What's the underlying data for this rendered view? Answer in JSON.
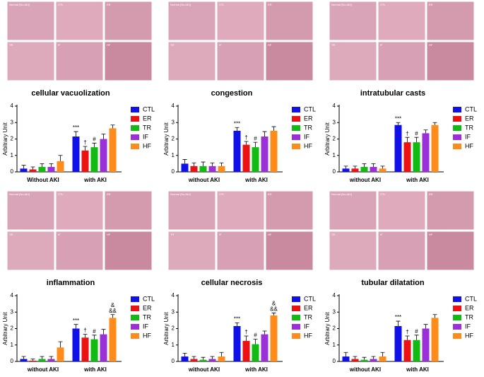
{
  "chart_data": [
    {
      "type": "bar",
      "title": "cellular vacuolization",
      "y_label": "Arbitrary Unit",
      "image_labels": [
        "Normal (No AKI)",
        "CTL",
        "ER",
        "TR",
        "IF",
        "HF"
      ],
      "categories": [
        "Without AKI",
        "with AKI"
      ],
      "ylim": [
        0,
        4
      ],
      "yticks": [
        0,
        1,
        2,
        3,
        4
      ],
      "series": [
        {
          "name": "CTL",
          "color": "#1010e8",
          "values": [
            0.2,
            2.15
          ],
          "errors": [
            0.2,
            0.3
          ],
          "annotations": [
            null,
            [
              "***"
            ]
          ]
        },
        {
          "name": "ER",
          "color": "#ee1111",
          "values": [
            0.15,
            1.3
          ],
          "errors": [
            0.15,
            0.25
          ],
          "annotations": [
            null,
            [
              "†"
            ]
          ]
        },
        {
          "name": "TR",
          "color": "#11bb11",
          "values": [
            0.3,
            1.5
          ],
          "errors": [
            0.2,
            0.25
          ],
          "annotations": [
            null,
            [
              "#"
            ]
          ]
        },
        {
          "name": "IF",
          "color": "#9b30d9",
          "values": [
            0.3,
            2.0
          ],
          "errors": [
            0.2,
            0.3
          ],
          "annotations": [
            null,
            null
          ]
        },
        {
          "name": "HF",
          "color": "#ff8c1a",
          "values": [
            0.65,
            2.65
          ],
          "errors": [
            0.35,
            0.2
          ],
          "annotations": [
            null,
            null
          ]
        }
      ]
    },
    {
      "type": "bar",
      "title": "congestion",
      "y_label": "Arbitrary Unit",
      "image_labels": [
        "Normal (No AKI)",
        "CTL",
        "ER",
        "TR",
        "IF",
        "HF"
      ],
      "categories": [
        "without AKI",
        "with AKI"
      ],
      "ylim": [
        0,
        4
      ],
      "yticks": [
        0,
        1,
        2,
        3,
        4
      ],
      "series": [
        {
          "name": "CTL",
          "color": "#1010e8",
          "values": [
            0.5,
            2.5
          ],
          "errors": [
            0.25,
            0.2
          ],
          "annotations": [
            null,
            [
              "***"
            ]
          ]
        },
        {
          "name": "ER",
          "color": "#ee1111",
          "values": [
            0.35,
            1.65
          ],
          "errors": [
            0.2,
            0.2
          ],
          "annotations": [
            null,
            [
              "†"
            ]
          ]
        },
        {
          "name": "TR",
          "color": "#11bb11",
          "values": [
            0.35,
            1.5
          ],
          "errors": [
            0.25,
            0.3
          ],
          "annotations": [
            null,
            [
              "#"
            ]
          ]
        },
        {
          "name": "IF",
          "color": "#9b30d9",
          "values": [
            0.35,
            2.15
          ],
          "errors": [
            0.2,
            0.3
          ],
          "annotations": [
            null,
            null
          ]
        },
        {
          "name": "HF",
          "color": "#ff8c1a",
          "values": [
            0.35,
            2.5
          ],
          "errors": [
            0.2,
            0.25
          ],
          "annotations": [
            null,
            null
          ]
        }
      ]
    },
    {
      "type": "bar",
      "title": "intratubular casts",
      "y_label": "Arbitrary Unit",
      "image_labels": [
        "Normal (No AKI)",
        "CTL",
        "ER",
        "TR",
        "IF",
        "HF"
      ],
      "categories": [
        "without AKI",
        "with AKI"
      ],
      "ylim": [
        0,
        4
      ],
      "yticks": [
        0,
        1,
        2,
        3,
        4
      ],
      "series": [
        {
          "name": "CTL",
          "color": "#1010e8",
          "values": [
            0.2,
            2.85
          ],
          "errors": [
            0.15,
            0.15
          ],
          "annotations": [
            null,
            [
              "***"
            ]
          ]
        },
        {
          "name": "ER",
          "color": "#ee1111",
          "values": [
            0.2,
            1.8
          ],
          "errors": [
            0.15,
            0.3
          ],
          "annotations": [
            null,
            [
              "†"
            ]
          ]
        },
        {
          "name": "TR",
          "color": "#11bb11",
          "values": [
            0.3,
            1.8
          ],
          "errors": [
            0.2,
            0.3
          ],
          "annotations": [
            null,
            [
              "#"
            ]
          ]
        },
        {
          "name": "IF",
          "color": "#9b30d9",
          "values": [
            0.3,
            2.35
          ],
          "errors": [
            0.2,
            0.2
          ],
          "annotations": [
            null,
            null
          ]
        },
        {
          "name": "HF",
          "color": "#ff8c1a",
          "values": [
            0.2,
            2.85
          ],
          "errors": [
            0.15,
            0.15
          ],
          "annotations": [
            null,
            null
          ]
        }
      ]
    },
    {
      "type": "bar",
      "title": "inflammation",
      "y_label": "Arbitrary Unit",
      "image_labels": [
        "Normal (No AKI)",
        "CTL",
        "ER",
        "TR",
        "IF",
        "HF"
      ],
      "categories": [
        "without AKI",
        "with AKI"
      ],
      "ylim": [
        0,
        4
      ],
      "yticks": [
        0,
        1,
        2,
        3,
        4
      ],
      "series": [
        {
          "name": "CTL",
          "color": "#1010e8",
          "values": [
            0.15,
            2.0
          ],
          "errors": [
            0.15,
            0.25
          ],
          "annotations": [
            null,
            [
              "***"
            ]
          ]
        },
        {
          "name": "ER",
          "color": "#ee1111",
          "values": [
            0.05,
            1.45
          ],
          "errors": [
            0.1,
            0.2
          ],
          "annotations": [
            null,
            [
              "†"
            ]
          ]
        },
        {
          "name": "TR",
          "color": "#11bb11",
          "values": [
            0.15,
            1.35
          ],
          "errors": [
            0.15,
            0.25
          ],
          "annotations": [
            null,
            [
              "#"
            ]
          ]
        },
        {
          "name": "IF",
          "color": "#9b30d9",
          "values": [
            0.15,
            1.65
          ],
          "errors": [
            0.15,
            0.3
          ],
          "annotations": [
            null,
            null
          ]
        },
        {
          "name": "HF",
          "color": "#ff8c1a",
          "values": [
            0.85,
            2.65
          ],
          "errors": [
            0.35,
            0.2
          ],
          "annotations": [
            null,
            [
              "&",
              "&&"
            ]
          ]
        }
      ]
    },
    {
      "type": "bar",
      "title": "cellular necrosis",
      "y_label": "Arbitrary Unit",
      "image_labels": [
        "Normal (No AKI)",
        "CTL",
        "ER",
        "TR",
        "IF",
        "HF"
      ],
      "categories": [
        "without AKI",
        "with AKI"
      ],
      "ylim": [
        0,
        4
      ],
      "yticks": [
        0,
        1,
        2,
        3,
        4
      ],
      "series": [
        {
          "name": "CTL",
          "color": "#1010e8",
          "values": [
            0.3,
            2.15
          ],
          "errors": [
            0.2,
            0.2
          ],
          "annotations": [
            null,
            [
              "***"
            ]
          ]
        },
        {
          "name": "ER",
          "color": "#ee1111",
          "values": [
            0.15,
            1.25
          ],
          "errors": [
            0.15,
            0.3
          ],
          "annotations": [
            null,
            [
              "†"
            ]
          ]
        },
        {
          "name": "TR",
          "color": "#11bb11",
          "values": [
            0.1,
            1.05
          ],
          "errors": [
            0.15,
            0.3
          ],
          "annotations": [
            null,
            [
              "#"
            ]
          ]
        },
        {
          "name": "IF",
          "color": "#9b30d9",
          "values": [
            0.15,
            1.65
          ],
          "errors": [
            0.15,
            0.2
          ],
          "annotations": [
            null,
            null
          ]
        },
        {
          "name": "HF",
          "color": "#ff8c1a",
          "values": [
            0.3,
            2.8
          ],
          "errors": [
            0.25,
            0.15
          ],
          "annotations": [
            null,
            [
              "&",
              "&&"
            ]
          ]
        }
      ]
    },
    {
      "type": "bar",
      "title": "tubular dilatation",
      "y_label": "Arbitrary Unit",
      "image_labels": [
        "Normal (No AKI)",
        "CTL",
        "ER",
        "TR",
        "IF",
        "HF"
      ],
      "categories": [
        "without AKI",
        "with AKI"
      ],
      "ylim": [
        0,
        4
      ],
      "yticks": [
        0,
        1,
        2,
        3,
        4
      ],
      "series": [
        {
          "name": "CTL",
          "color": "#1010e8",
          "values": [
            0.3,
            2.15
          ],
          "errors": [
            0.25,
            0.3
          ],
          "annotations": [
            null,
            [
              "***"
            ]
          ]
        },
        {
          "name": "ER",
          "color": "#ee1111",
          "values": [
            0.15,
            1.3
          ],
          "errors": [
            0.15,
            0.25
          ],
          "annotations": [
            null,
            [
              "†"
            ]
          ]
        },
        {
          "name": "TR",
          "color": "#11bb11",
          "values": [
            0.1,
            1.3
          ],
          "errors": [
            0.15,
            0.3
          ],
          "annotations": [
            null,
            [
              "#"
            ]
          ]
        },
        {
          "name": "IF",
          "color": "#9b30d9",
          "values": [
            0.15,
            2.0
          ],
          "errors": [
            0.15,
            0.25
          ],
          "annotations": [
            null,
            null
          ]
        },
        {
          "name": "HF",
          "color": "#ff8c1a",
          "values": [
            0.3,
            2.65
          ],
          "errors": [
            0.25,
            0.2
          ],
          "annotations": [
            null,
            null
          ]
        }
      ]
    }
  ]
}
